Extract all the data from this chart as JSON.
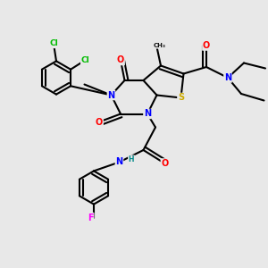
{
  "bg_color": "#e8e8e8",
  "atom_colors": {
    "C": "#000000",
    "N": "#0000ff",
    "O": "#ff0000",
    "S": "#ccaa00",
    "Cl": "#00bb00",
    "F": "#ff00ff",
    "H": "#008888"
  },
  "bond_color": "#000000",
  "bond_width": 1.5
}
